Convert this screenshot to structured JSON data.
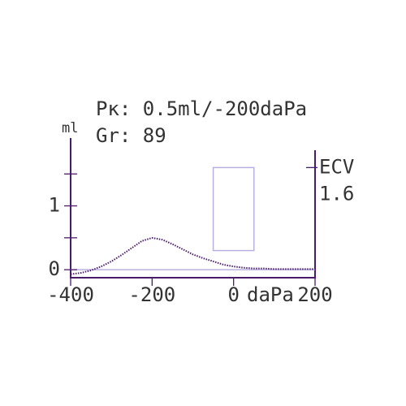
{
  "chart_data": {
    "type": "line",
    "title": "Pк: 0.5ml/-200daPa",
    "subtitle": "Gr: 89",
    "y_label": "ml",
    "x_label": "daPa",
    "x": [
      -400,
      -375,
      -350,
      -325,
      -300,
      -275,
      -250,
      -225,
      -200,
      -175,
      -150,
      -125,
      -100,
      -75,
      -50,
      -25,
      0,
      25,
      50,
      75,
      100,
      150,
      200
    ],
    "series": [
      {
        "color": "#4a1a6b",
        "values": [
          -0.07,
          -0.05,
          -0.01,
          0.05,
          0.13,
          0.23,
          0.34,
          0.45,
          0.5,
          0.47,
          0.4,
          0.32,
          0.24,
          0.18,
          0.13,
          0.08,
          0.05,
          0.03,
          0.02,
          0.02,
          0.01,
          0.01,
          0.01
        ]
      }
    ],
    "xlim": [
      -400,
      200
    ],
    "xticks": [
      -400,
      -200,
      0,
      200
    ],
    "ylim": [
      -0.125,
      2
    ],
    "yticks": [
      0,
      1
    ],
    "yminor_ticks": [
      0.5,
      1.5
    ],
    "baseline": 0,
    "normal_region": {
      "x": [
        -50,
        50
      ],
      "y": [
        0.3,
        1.6
      ],
      "color": "#b8b0e0"
    },
    "ecv": {
      "label": "ECV",
      "value": 1.6
    }
  }
}
